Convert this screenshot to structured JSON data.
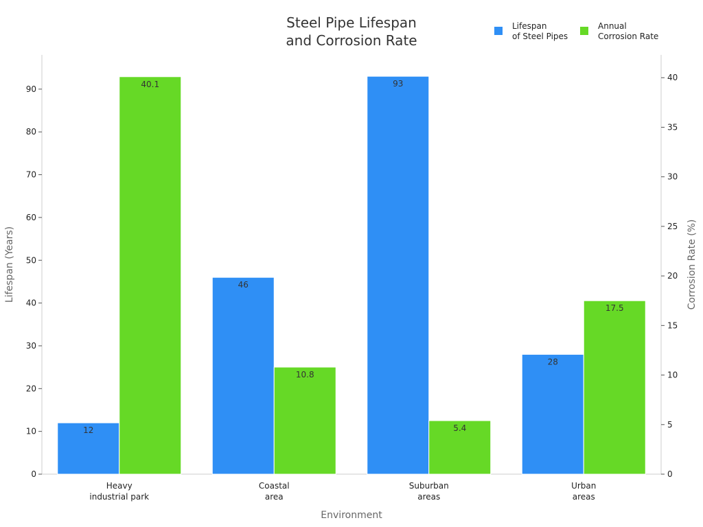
{
  "chart_data": {
    "type": "bar",
    "title": [
      "Steel Pipe Lifespan",
      "and Corrosion Rate"
    ],
    "xlabel": "Environment",
    "categories": [
      [
        "Heavy",
        "industrial park"
      ],
      [
        "Coastal",
        "area"
      ],
      [
        "Suburban",
        "areas"
      ],
      [
        "Urban",
        "areas"
      ]
    ],
    "series": [
      {
        "name": [
          "Lifespan",
          "of Steel Pipes"
        ],
        "axis": "left",
        "color": "#2f8ff5",
        "values": [
          12,
          46,
          93,
          28
        ]
      },
      {
        "name": [
          "Annual",
          "Corrosion Rate"
        ],
        "axis": "right",
        "color": "#66d926",
        "values": [
          40.1,
          10.8,
          5.4,
          17.5
        ]
      }
    ],
    "y_left": {
      "label": "Lifespan (Years)",
      "ylim": [
        0,
        98
      ],
      "ticks": [
        0,
        10,
        20,
        30,
        40,
        50,
        60,
        70,
        80,
        90
      ]
    },
    "y_right": {
      "label": "Corrosion Rate (%)",
      "ylim": [
        0,
        42.3
      ],
      "ticks": [
        0,
        5,
        10,
        15,
        20,
        25,
        30,
        35,
        40
      ]
    },
    "legend_position": "top-right",
    "grid": false
  }
}
